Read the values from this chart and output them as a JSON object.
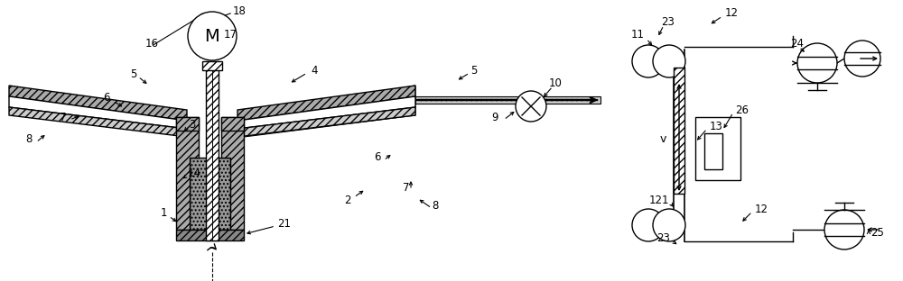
{
  "figsize": [
    10.0,
    3.12
  ],
  "dpi": 100,
  "bg": "#ffffff",
  "lw": 1.0,
  "hatch_dense": "////",
  "hatch_dot": "....",
  "gray_dark": "#888888",
  "gray_mid": "#bbbbbb",
  "gray_light": "#dddddd"
}
